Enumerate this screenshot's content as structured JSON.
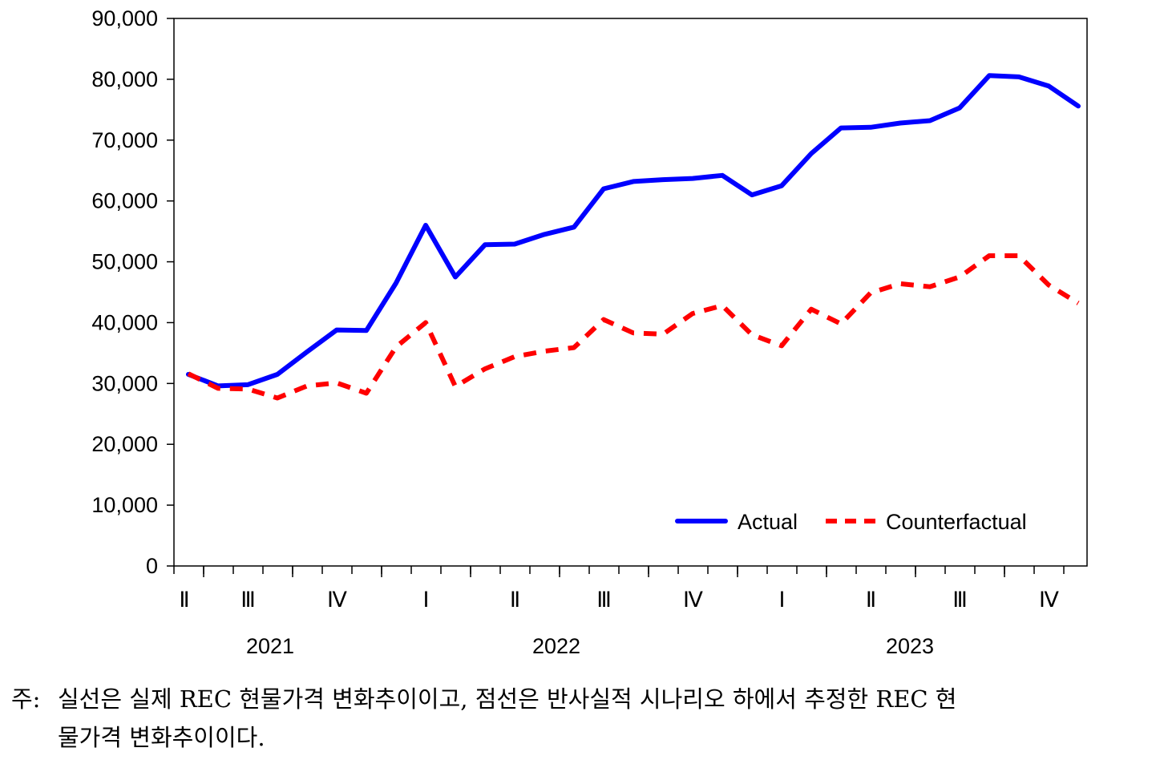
{
  "chart_data": {
    "type": "line",
    "ylim": [
      0,
      90000
    ],
    "yticks": [
      "0",
      "10,000",
      "20,000",
      "30,000",
      "40,000",
      "50,000",
      "60,000",
      "70,000",
      "80,000",
      "90,000"
    ],
    "quarter_labels": [
      "Ⅱ",
      "Ⅲ",
      "Ⅳ",
      "Ⅰ",
      "Ⅱ",
      "Ⅲ",
      "Ⅳ",
      "Ⅰ",
      "Ⅱ",
      "Ⅲ",
      "Ⅳ"
    ],
    "year_labels": [
      "2021",
      "2022",
      "2023"
    ],
    "x": [
      "2021-06",
      "2021-07",
      "2021-08",
      "2021-09",
      "2021-10",
      "2021-11",
      "2021-12",
      "2022-01",
      "2022-02",
      "2022-03",
      "2022-04",
      "2022-05",
      "2022-06",
      "2022-07",
      "2022-08",
      "2022-09",
      "2022-10",
      "2022-11",
      "2022-12",
      "2023-01",
      "2023-02",
      "2023-03",
      "2023-04",
      "2023-05",
      "2023-06",
      "2023-07",
      "2023-08",
      "2023-09",
      "2023-10",
      "2023-11",
      "2023-12"
    ],
    "legend_position": "bottom-right",
    "series": [
      {
        "name": "Actual",
        "color": "#0000FF",
        "style": "solid",
        "values": [
          31500,
          29600,
          29800,
          31500,
          35200,
          38800,
          38700,
          46500,
          56000,
          47500,
          52800,
          52900,
          54500,
          55700,
          62000,
          63200,
          63500,
          63700,
          64200,
          61000,
          62500,
          67800,
          72000,
          72100,
          72800,
          73200,
          75300,
          80600,
          80400,
          78900,
          75600
        ]
      },
      {
        "name": "Counterfactual",
        "color": "#FF0000",
        "style": "dashed",
        "values": [
          31600,
          29200,
          29100,
          27600,
          29600,
          30100,
          28400,
          36000,
          40000,
          29500,
          32400,
          34400,
          35300,
          35900,
          40500,
          38300,
          38100,
          41500,
          42800,
          38000,
          36200,
          42200,
          39800,
          44900,
          46400,
          45900,
          47500,
          51000,
          51000,
          46200,
          43200
        ]
      }
    ]
  },
  "note": {
    "prefix": "주:",
    "line1": "실선은 실제 REC 현물가격 변화추이이고, 점선은 반사실적 시나리오 하에서 추정한 REC 현",
    "line2": "물가격 변화추이이다."
  }
}
